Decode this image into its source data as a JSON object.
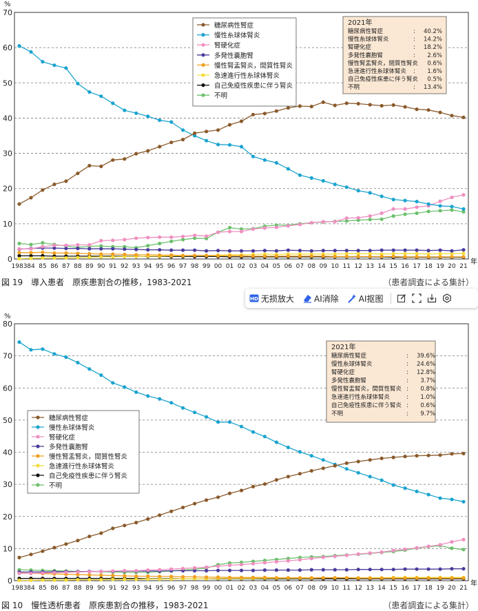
{
  "year_unit": "年",
  "figures": [
    {
      "caption": "図 19　導入患者　原疾患割合の推移，1983-2021",
      "caption_right": "（患者調査による集計）",
      "y_unit": "%",
      "summary": {
        "title": "2021年",
        "rows": [
          {
            "label": "糖尿病性腎症",
            "value": "40.2%"
          },
          {
            "label": "慢性糸球体腎炎",
            "value": "14.2%"
          },
          {
            "label": "腎硬化症",
            "value": "18.2%"
          },
          {
            "label": "多発性嚢胞腎",
            "value": "2.6%"
          },
          {
            "label": "慢性腎盂腎炎，間質性腎炎",
            "value": "0.6%"
          },
          {
            "label": "急速進行性糸球体腎炎",
            "value": "1.6%"
          },
          {
            "label": "自己免疫性疾患に伴う腎炎",
            "value": "0.5%"
          },
          {
            "label": "不明",
            "value": "13.4%"
          }
        ]
      }
    },
    {
      "caption": "図 10　慢性透析患者　原疾患割合の推移，1983-2021",
      "caption_right": "（患者調査による集計）",
      "y_unit": "%",
      "summary": {
        "title": "2021年",
        "rows": [
          {
            "label": "糖尿病性腎症",
            "value": "39.6%"
          },
          {
            "label": "慢性糸球体腎炎",
            "value": "24.6%"
          },
          {
            "label": "腎硬化症",
            "value": "12.8%"
          },
          {
            "label": "多発性嚢胞腎",
            "value": "3.7%"
          },
          {
            "label": "慢性腎盂腎炎，間質性腎炎",
            "value": "0.8%"
          },
          {
            "label": "急速進行性糸球体腎炎",
            "value": "1.0%"
          },
          {
            "label": "自己免疫性疾患に伴う腎炎",
            "value": "0.6%"
          },
          {
            "label": "不明",
            "value": "9.7%"
          }
        ]
      }
    }
  ],
  "chart_data": [
    {
      "type": "line",
      "title": "導入患者　原疾患割合の推移，1983-2021",
      "ylabel": "%",
      "xlabel": "年",
      "ylim": [
        0,
        70
      ],
      "yticks": [
        0,
        10,
        20,
        30,
        40,
        50,
        60,
        70
      ],
      "grid": "horizontal",
      "legend": "top-center",
      "x": [
        1983,
        1984,
        1985,
        1986,
        1987,
        1988,
        1989,
        1990,
        1991,
        1992,
        1993,
        1994,
        1995,
        1996,
        1997,
        1998,
        1999,
        2000,
        2001,
        2002,
        2003,
        2004,
        2005,
        2006,
        2007,
        2008,
        2009,
        2010,
        2011,
        2012,
        2013,
        2014,
        2015,
        2016,
        2017,
        2018,
        2019,
        2020,
        2021
      ],
      "xticklabels": [
        "1983",
        "84",
        "85",
        "86",
        "87",
        "88",
        "89",
        "90",
        "91",
        "92",
        "93",
        "94",
        "95",
        "96",
        "97",
        "98",
        "99",
        "00",
        "01",
        "02",
        "03",
        "04",
        "05",
        "06",
        "07",
        "08",
        "09",
        "10",
        "11",
        "12",
        "13",
        "14",
        "15",
        "16",
        "17",
        "18",
        "19",
        "20",
        "21"
      ],
      "series": [
        {
          "name": "糖尿病性腎症",
          "color": "#8a5a2b",
          "values": [
            15.6,
            17.4,
            19.6,
            21.2,
            22.1,
            24.3,
            26.5,
            26.3,
            28.1,
            28.4,
            29.9,
            30.7,
            31.9,
            33.1,
            33.9,
            35.7,
            36.2,
            36.6,
            38.1,
            39.1,
            41.0,
            41.3,
            42.0,
            42.9,
            43.4,
            43.3,
            44.5,
            43.6,
            44.2,
            44.1,
            43.8,
            43.5,
            43.7,
            43.2,
            42.5,
            42.3,
            41.6,
            40.7,
            40.2
          ]
        },
        {
          "name": "慢性糸球体腎炎",
          "color": "#1aa3cf",
          "values": [
            60.5,
            58.8,
            56.0,
            55.0,
            54.2,
            49.8,
            47.4,
            46.2,
            44.2,
            42.2,
            41.4,
            40.5,
            39.4,
            38.9,
            36.6,
            35.0,
            33.6,
            32.5,
            32.4,
            31.9,
            29.1,
            28.1,
            27.3,
            25.6,
            23.8,
            23.0,
            22.2,
            21.2,
            20.4,
            19.4,
            18.8,
            17.8,
            16.9,
            16.6,
            16.3,
            15.6,
            15.1,
            14.9,
            14.2
          ]
        },
        {
          "name": "腎硬化症",
          "color": "#ef8fc0",
          "values": [
            2.9,
            2.9,
            3.5,
            3.9,
            3.9,
            4.0,
            4.0,
            5.2,
            5.3,
            5.5,
            5.9,
            6.1,
            6.2,
            6.2,
            6.4,
            6.7,
            6.5,
            7.6,
            7.8,
            7.8,
            8.5,
            8.8,
            9.0,
            9.4,
            9.8,
            10.3,
            10.6,
            10.6,
            11.6,
            11.7,
            12.2,
            13.0,
            14.2,
            14.2,
            14.7,
            15.1,
            16.4,
            17.5,
            18.2
          ]
        },
        {
          "name": "多発性嚢胞腎",
          "color": "#4a3a9a",
          "values": [
            2.8,
            3.0,
            3.1,
            3.1,
            3.0,
            3.0,
            2.9,
            2.9,
            2.9,
            2.8,
            2.7,
            2.6,
            2.6,
            2.5,
            2.5,
            2.5,
            2.3,
            2.4,
            2.3,
            2.3,
            2.3,
            2.4,
            2.3,
            2.5,
            2.4,
            2.3,
            2.4,
            2.4,
            2.4,
            2.4,
            2.4,
            2.5,
            2.5,
            2.5,
            2.5,
            2.4,
            2.5,
            2.3,
            2.6
          ]
        },
        {
          "name": "慢性腎盂腎炎，間質性腎炎",
          "color": "#f0a020",
          "values": [
            1.8,
            1.8,
            1.9,
            1.7,
            1.7,
            1.6,
            1.5,
            1.4,
            1.4,
            1.3,
            1.2,
            1.2,
            1.1,
            1.1,
            1.0,
            1.0,
            1.0,
            0.9,
            0.9,
            0.9,
            0.8,
            0.8,
            0.8,
            0.8,
            0.8,
            0.8,
            0.8,
            0.7,
            0.7,
            0.7,
            0.7,
            0.7,
            0.7,
            0.6,
            0.6,
            0.6,
            0.6,
            0.6,
            0.6
          ]
        },
        {
          "name": "急速進行性糸球体腎炎",
          "color": "#f5dc3c",
          "values": [
            0.1,
            0.2,
            0.3,
            0.3,
            0.3,
            0.4,
            0.5,
            0.6,
            0.6,
            0.7,
            0.7,
            0.8,
            0.8,
            0.9,
            0.9,
            1.0,
            1.0,
            1.1,
            1.2,
            1.2,
            1.3,
            1.4,
            1.3,
            1.4,
            1.4,
            1.4,
            1.4,
            1.4,
            1.5,
            1.5,
            1.5,
            1.4,
            1.5,
            1.5,
            1.5,
            1.4,
            1.5,
            1.5,
            1.6
          ]
        },
        {
          "name": "自己免疫性疾患に伴う腎炎",
          "color": "#111111",
          "values": [
            0.9,
            0.9,
            0.9,
            0.8,
            0.8,
            0.8,
            0.8,
            0.8,
            0.8,
            0.8,
            0.8,
            0.7,
            0.7,
            0.7,
            0.7,
            0.7,
            0.7,
            0.7,
            0.6,
            0.6,
            0.6,
            0.6,
            0.6,
            0.6,
            0.6,
            0.6,
            0.6,
            0.6,
            0.6,
            0.6,
            0.6,
            0.6,
            0.5,
            0.5,
            0.5,
            0.5,
            0.5,
            0.5,
            0.5
          ]
        },
        {
          "name": "不明",
          "color": "#6cc06c",
          "values": [
            4.4,
            4.1,
            4.6,
            4.1,
            3.7,
            3.3,
            3.6,
            3.7,
            3.5,
            3.5,
            3.2,
            3.8,
            4.4,
            5.0,
            5.5,
            5.9,
            5.8,
            7.6,
            8.9,
            8.5,
            8.6,
            9.3,
            9.6,
            9.6,
            10.0,
            10.3,
            10.5,
            10.7,
            10.8,
            11.0,
            11.2,
            11.3,
            12.2,
            12.7,
            13.0,
            13.5,
            13.7,
            13.9,
            13.4
          ]
        }
      ]
    },
    {
      "type": "line",
      "title": "慢性透析患者　原疾患割合の推移，1983-2021",
      "ylabel": "%",
      "xlabel": "年",
      "ylim": [
        0,
        80
      ],
      "yticks": [
        0,
        10,
        20,
        30,
        40,
        50,
        60,
        70,
        80
      ],
      "grid": "horizontal",
      "legend": "center-left",
      "x": [
        1983,
        1984,
        1985,
        1986,
        1987,
        1988,
        1989,
        1990,
        1991,
        1992,
        1993,
        1994,
        1995,
        1996,
        1997,
        1998,
        1999,
        2000,
        2001,
        2002,
        2003,
        2004,
        2005,
        2006,
        2007,
        2008,
        2009,
        2010,
        2011,
        2012,
        2013,
        2014,
        2015,
        2016,
        2017,
        2018,
        2019,
        2020,
        2021
      ],
      "xticklabels": [
        "1983",
        "84",
        "85",
        "86",
        "87",
        "88",
        "89",
        "90",
        "91",
        "92",
        "93",
        "94",
        "95",
        "96",
        "97",
        "98",
        "99",
        "00",
        "01",
        "02",
        "03",
        "04",
        "05",
        "06",
        "07",
        "08",
        "09",
        "10",
        "11",
        "12",
        "13",
        "14",
        "15",
        "16",
        "17",
        "18",
        "19",
        "20",
        "21"
      ],
      "series": [
        {
          "name": "糖尿病性腎症",
          "color": "#8a5a2b",
          "values": [
            7.2,
            8.2,
            9.2,
            10.3,
            11.4,
            12.5,
            13.8,
            14.8,
            16.3,
            17.2,
            18.1,
            19.2,
            20.4,
            21.6,
            22.8,
            24.0,
            25.1,
            26.0,
            27.2,
            28.1,
            29.3,
            30.1,
            31.4,
            32.4,
            33.3,
            34.2,
            35.0,
            35.8,
            36.6,
            37.1,
            37.6,
            38.1,
            38.4,
            38.7,
            38.9,
            39.0,
            39.1,
            39.5,
            39.6
          ]
        },
        {
          "name": "慢性糸球体腎炎",
          "color": "#1aa3cf",
          "values": [
            74.3,
            71.9,
            72.1,
            70.6,
            69.6,
            67.9,
            65.9,
            64.0,
            61.6,
            60.3,
            58.7,
            57.5,
            56.6,
            55.4,
            53.8,
            52.4,
            51.0,
            49.4,
            49.4,
            48.0,
            46.3,
            44.9,
            43.1,
            41.5,
            40.1,
            38.9,
            37.6,
            36.2,
            34.8,
            33.6,
            32.4,
            31.3,
            29.8,
            28.8,
            27.8,
            26.8,
            25.7,
            25.3,
            24.6
          ]
        },
        {
          "name": "腎硬化症",
          "color": "#ef8fc0",
          "values": [
            2.3,
            2.3,
            2.4,
            2.5,
            2.6,
            2.7,
            2.8,
            2.9,
            3.0,
            3.1,
            3.1,
            3.3,
            3.4,
            3.6,
            3.8,
            4.0,
            4.2,
            4.5,
            4.8,
            5.0,
            5.3,
            5.6,
            5.9,
            6.2,
            6.5,
            6.9,
            7.3,
            7.6,
            7.9,
            8.3,
            8.6,
            8.9,
            9.4,
            9.8,
            10.2,
            10.7,
            11.2,
            12.1,
            12.8
          ]
        },
        {
          "name": "多発性嚢胞腎",
          "color": "#4a3a9a",
          "values": [
            2.7,
            2.7,
            2.7,
            2.8,
            2.8,
            2.8,
            2.9,
            2.9,
            2.9,
            3.0,
            3.0,
            3.0,
            3.0,
            3.1,
            3.1,
            3.1,
            3.1,
            3.2,
            3.2,
            3.2,
            3.2,
            3.3,
            3.3,
            3.3,
            3.3,
            3.4,
            3.4,
            3.4,
            3.4,
            3.5,
            3.5,
            3.5,
            3.5,
            3.6,
            3.6,
            3.6,
            3.6,
            3.7,
            3.7
          ]
        },
        {
          "name": "慢性腎盂腎炎，間質性腎炎",
          "color": "#f0a020",
          "values": [
            2.4,
            2.3,
            2.2,
            2.1,
            2.0,
            1.9,
            1.8,
            1.7,
            1.6,
            1.5,
            1.4,
            1.4,
            1.3,
            1.3,
            1.2,
            1.2,
            1.1,
            1.1,
            1.0,
            1.0,
            1.0,
            1.0,
            0.9,
            0.9,
            0.9,
            0.9,
            0.9,
            0.9,
            0.9,
            0.8,
            0.8,
            0.8,
            0.8,
            0.8,
            0.8,
            0.8,
            0.8,
            0.8,
            0.8
          ]
        },
        {
          "name": "急速進行性糸球体腎炎",
          "color": "#f5dc3c",
          "values": [
            0.1,
            0.1,
            0.2,
            0.2,
            0.2,
            0.3,
            0.3,
            0.3,
            0.4,
            0.4,
            0.4,
            0.5,
            0.5,
            0.5,
            0.6,
            0.6,
            0.6,
            0.7,
            0.7,
            0.7,
            0.7,
            0.8,
            0.8,
            0.8,
            0.8,
            0.8,
            0.9,
            0.9,
            0.9,
            0.9,
            0.9,
            0.9,
            1.0,
            1.0,
            1.0,
            1.0,
            1.0,
            1.0,
            1.0
          ]
        },
        {
          "name": "自己免疫性疾患に伴う腎炎",
          "color": "#111111",
          "values": [
            0.7,
            0.7,
            0.7,
            0.7,
            0.7,
            0.7,
            0.7,
            0.7,
            0.7,
            0.7,
            0.7,
            0.6,
            0.6,
            0.6,
            0.6,
            0.6,
            0.6,
            0.6,
            0.6,
            0.6,
            0.6,
            0.6,
            0.6,
            0.6,
            0.6,
            0.6,
            0.6,
            0.6,
            0.6,
            0.6,
            0.6,
            0.6,
            0.6,
            0.6,
            0.6,
            0.6,
            0.6,
            0.6,
            0.6
          ]
        },
        {
          "name": "不明",
          "color": "#6cc06c",
          "values": [
            3.4,
            3.3,
            3.2,
            3.1,
            3.0,
            2.9,
            2.8,
            2.8,
            2.7,
            2.6,
            2.6,
            2.6,
            2.8,
            3.0,
            3.3,
            3.6,
            3.9,
            5.0,
            5.5,
            5.7,
            6.0,
            6.3,
            6.6,
            6.9,
            7.2,
            7.4,
            7.5,
            7.8,
            8.0,
            8.2,
            8.5,
            8.8,
            9.1,
            9.5,
            10.1,
            10.6,
            10.9,
            10.1,
            9.7
          ]
        }
      ]
    }
  ],
  "toolbar": {
    "buttons": [
      {
        "label": "无损放大",
        "icon": "hd-icon"
      },
      {
        "label": "AI消除",
        "icon": "eraser-icon"
      },
      {
        "label": "AI抠图",
        "icon": "magic-wand-icon"
      }
    ],
    "icon_buttons": [
      "edit-icon",
      "crop-icon",
      "download-icon",
      "settings-icon"
    ]
  }
}
